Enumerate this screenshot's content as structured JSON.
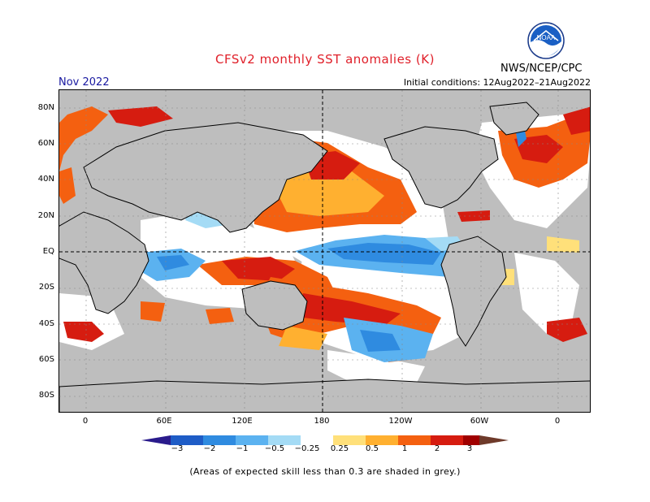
{
  "header": {
    "title": "CFSv2 monthly SST anomalies (K)",
    "org": "NWS/NCEP/CPC",
    "logo_text": "NOAA",
    "month": "Nov 2022",
    "initial_conditions": "Initial conditions: 12Aug2022–21Aug2022"
  },
  "map": {
    "lat_labels": [
      "80N",
      "60N",
      "40N",
      "20N",
      "EQ",
      "20S",
      "40S",
      "60S",
      "80S"
    ],
    "lon_labels": [
      "0",
      "60E",
      "120E",
      "180",
      "120W",
      "60W",
      "0"
    ],
    "skill_mask_color": "#bebebe",
    "ocean_color": "#ffffff",
    "land_outline_color": "#000000"
  },
  "colorbar": {
    "labels": [
      "−3",
      "−2",
      "−1",
      "−0.5",
      "−0.25",
      "0.25",
      "0.5",
      "1",
      "2",
      "3"
    ],
    "colors": [
      "#2a1b8c",
      "#1e5cc6",
      "#2f8be0",
      "#5bb2f0",
      "#a4dbf5",
      "#ffffff",
      "#ffe07a",
      "#ffb030",
      "#f46010",
      "#d61c10",
      "#a00000",
      "#6e3a2a"
    ]
  },
  "footer": {
    "caption": "(Areas of expected skill less than 0.3 are shaded in grey.)"
  }
}
